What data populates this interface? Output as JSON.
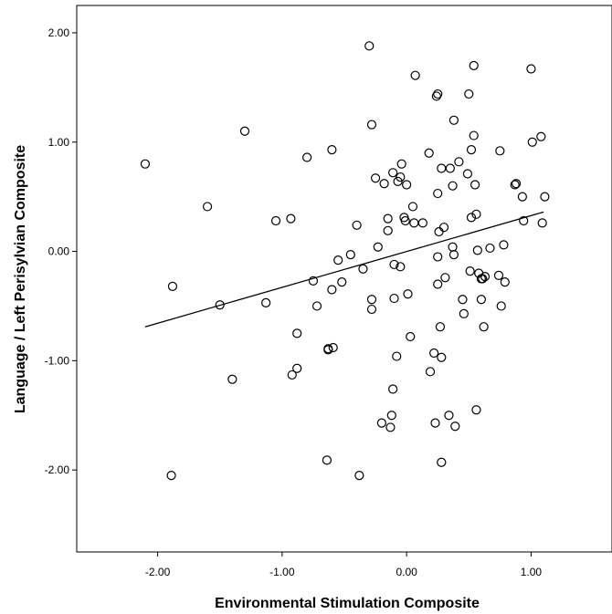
{
  "chart_data": {
    "type": "scatter",
    "title": "",
    "xlabel": "Environmental Stimulation Composite",
    "ylabel": "Language / Left Perisylvian Composite",
    "xlim": [
      -2.65,
      1.65
    ],
    "ylim": [
      -2.75,
      2.25
    ],
    "x_ticks": [
      -2.0,
      -1.0,
      0.0,
      1.0
    ],
    "x_tick_labels": [
      "-2.00",
      "-1.00",
      "0.00",
      "1.00"
    ],
    "y_ticks": [
      2.0,
      1.0,
      0.0,
      -1.0,
      -2.0
    ],
    "y_tick_labels": [
      "2.00",
      "1.00",
      "0.00",
      "-1.00",
      "-2.00"
    ],
    "grid": false,
    "legend": "none",
    "marker": "open-circle",
    "colors": {
      "marker": "#000000",
      "fit_line": "#000000",
      "background": "#ffffff"
    },
    "fit_line": {
      "x": [
        -2.1,
        1.1
      ],
      "y": [
        -0.69,
        0.36
      ]
    },
    "series": [
      {
        "points": [
          [
            -2.1,
            0.8
          ],
          [
            -1.88,
            -0.32
          ],
          [
            -1.89,
            -2.05
          ],
          [
            -1.6,
            0.41
          ],
          [
            -1.5,
            -0.49
          ],
          [
            -1.4,
            -1.17
          ],
          [
            -1.3,
            1.1
          ],
          [
            -1.13,
            -0.47
          ],
          [
            -1.05,
            0.28
          ],
          [
            -0.93,
            0.3
          ],
          [
            -0.92,
            -1.13
          ],
          [
            -0.88,
            -1.07
          ],
          [
            -0.88,
            -0.75
          ],
          [
            -0.8,
            0.86
          ],
          [
            -0.75,
            -0.27
          ],
          [
            -0.72,
            -0.5
          ],
          [
            -0.63,
            -0.9
          ],
          [
            -0.63,
            -0.89
          ],
          [
            -0.64,
            -1.91
          ],
          [
            -0.6,
            0.93
          ],
          [
            -0.6,
            -0.35
          ],
          [
            -0.59,
            -0.88
          ],
          [
            -0.55,
            -0.08
          ],
          [
            -0.52,
            -0.28
          ],
          [
            -0.45,
            -0.03
          ],
          [
            -0.4,
            0.24
          ],
          [
            -0.38,
            -2.05
          ],
          [
            -0.35,
            -0.16
          ],
          [
            -0.3,
            1.88
          ],
          [
            -0.28,
            1.16
          ],
          [
            -0.28,
            -0.44
          ],
          [
            -0.28,
            -0.53
          ],
          [
            -0.25,
            0.67
          ],
          [
            -0.23,
            0.04
          ],
          [
            -0.2,
            -1.57
          ],
          [
            -0.18,
            0.62
          ],
          [
            -0.15,
            0.19
          ],
          [
            -0.15,
            0.3
          ],
          [
            -0.13,
            -1.61
          ],
          [
            -0.12,
            -1.5
          ],
          [
            -0.11,
            -1.26
          ],
          [
            -0.11,
            0.72
          ],
          [
            -0.1,
            -0.43
          ],
          [
            -0.1,
            -0.12
          ],
          [
            -0.08,
            -0.96
          ],
          [
            -0.07,
            0.64
          ],
          [
            -0.05,
            0.68
          ],
          [
            -0.05,
            -0.14
          ],
          [
            -0.04,
            0.8
          ],
          [
            -0.02,
            0.31
          ],
          [
            -0.01,
            0.28
          ],
          [
            0.0,
            0.61
          ],
          [
            0.01,
            -0.39
          ],
          [
            0.03,
            -0.78
          ],
          [
            0.05,
            0.41
          ],
          [
            0.06,
            0.26
          ],
          [
            0.07,
            1.61
          ],
          [
            0.13,
            0.26
          ],
          [
            0.18,
            0.9
          ],
          [
            0.19,
            -1.1
          ],
          [
            0.22,
            -0.93
          ],
          [
            0.23,
            -1.57
          ],
          [
            0.24,
            1.42
          ],
          [
            0.25,
            1.44
          ],
          [
            0.25,
            -0.05
          ],
          [
            0.25,
            0.53
          ],
          [
            0.25,
            -0.3
          ],
          [
            0.26,
            0.18
          ],
          [
            0.27,
            -0.69
          ],
          [
            0.28,
            -0.97
          ],
          [
            0.28,
            -1.93
          ],
          [
            0.28,
            0.76
          ],
          [
            0.3,
            0.22
          ],
          [
            0.31,
            -0.24
          ],
          [
            0.34,
            -1.5
          ],
          [
            0.35,
            0.76
          ],
          [
            0.37,
            0.04
          ],
          [
            0.37,
            0.6
          ],
          [
            0.38,
            -0.03
          ],
          [
            0.38,
            1.2
          ],
          [
            0.39,
            -1.6
          ],
          [
            0.42,
            0.82
          ],
          [
            0.45,
            -0.44
          ],
          [
            0.46,
            -0.57
          ],
          [
            0.49,
            0.71
          ],
          [
            0.5,
            1.44
          ],
          [
            0.51,
            -0.18
          ],
          [
            0.52,
            0.31
          ],
          [
            0.52,
            0.93
          ],
          [
            0.54,
            1.7
          ],
          [
            0.54,
            1.06
          ],
          [
            0.55,
            0.61
          ],
          [
            0.56,
            0.34
          ],
          [
            0.56,
            -1.45
          ],
          [
            0.57,
            0.01
          ],
          [
            0.58,
            -0.2
          ],
          [
            0.6,
            -0.44
          ],
          [
            0.6,
            -0.25
          ],
          [
            0.61,
            -0.25
          ],
          [
            0.62,
            -0.69
          ],
          [
            0.63,
            -0.23
          ],
          [
            0.67,
            0.03
          ],
          [
            0.74,
            -0.22
          ],
          [
            0.75,
            0.92
          ],
          [
            0.76,
            -0.5
          ],
          [
            0.78,
            0.06
          ],
          [
            0.79,
            -0.28
          ],
          [
            0.87,
            0.61
          ],
          [
            0.88,
            0.62
          ],
          [
            0.93,
            0.5
          ],
          [
            0.94,
            0.28
          ],
          [
            1.0,
            1.67
          ],
          [
            1.01,
            1.0
          ],
          [
            1.08,
            1.05
          ],
          [
            1.09,
            0.26
          ],
          [
            1.11,
            0.5
          ]
        ]
      }
    ]
  }
}
